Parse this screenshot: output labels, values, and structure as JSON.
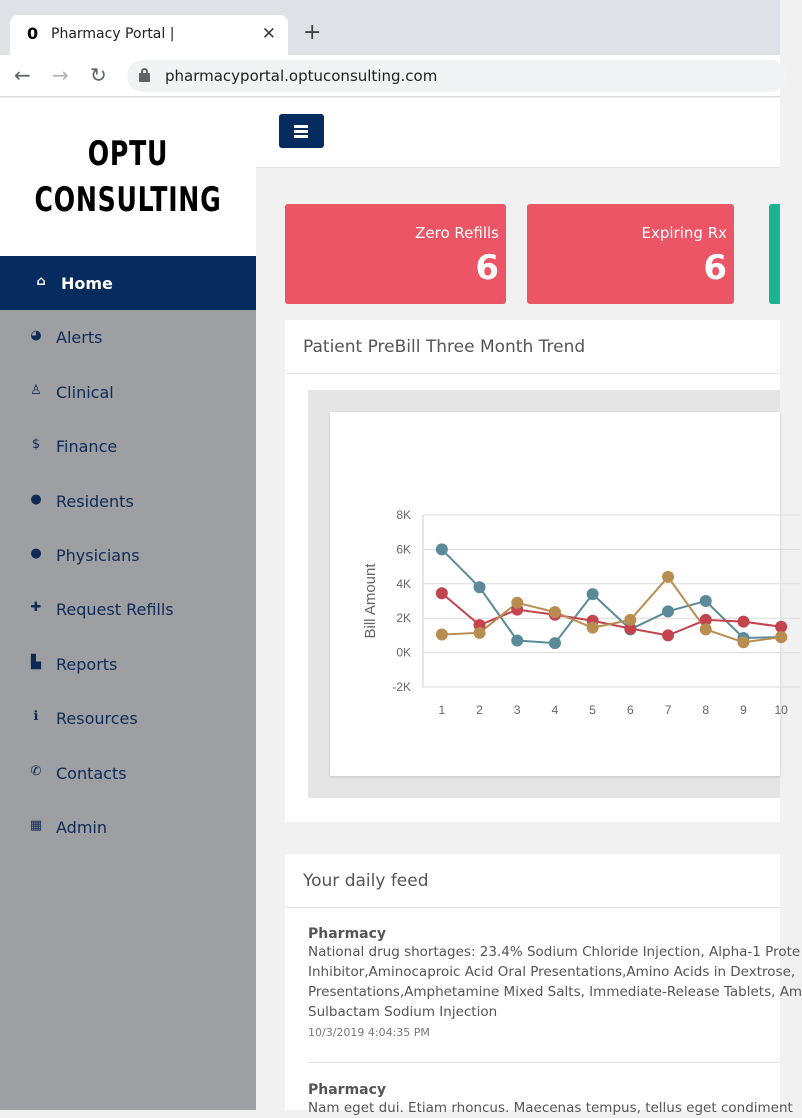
{
  "browser": {
    "tab_title": "Pharmacy Portal |",
    "tab_favicon": "0",
    "url": "pharmacyportal.optuconsulting.com"
  },
  "logo": {
    "line1": "OPTU",
    "line2": "CONSULTING"
  },
  "sidebar": {
    "items": [
      {
        "label": "Home",
        "icon": "home-icon",
        "glyph": "⌂"
      },
      {
        "label": "Alerts",
        "icon": "dashboard-icon",
        "glyph": "◕"
      },
      {
        "label": "Clinical",
        "icon": "user-md-icon",
        "glyph": "♙"
      },
      {
        "label": "Finance",
        "icon": "dollar-icon",
        "glyph": "$"
      },
      {
        "label": "Residents",
        "icon": "user-icon",
        "glyph": "●"
      },
      {
        "label": "Physicians",
        "icon": "user-icon",
        "glyph": "●"
      },
      {
        "label": "Request Refills",
        "icon": "medkit-icon",
        "glyph": "✚"
      },
      {
        "label": "Reports",
        "icon": "file-icon",
        "glyph": "▙"
      },
      {
        "label": "Resources",
        "icon": "info-circle-icon",
        "glyph": "ℹ"
      },
      {
        "label": "Contacts",
        "icon": "phone-icon",
        "glyph": "✆"
      },
      {
        "label": "Admin",
        "icon": "building-icon",
        "glyph": "▦"
      }
    ]
  },
  "cards": [
    {
      "label": "Zero Refills",
      "value": "6",
      "color": "#ec5565"
    },
    {
      "label": "Expiring Rx",
      "value": "6",
      "color": "#ec5565"
    },
    {
      "label": "",
      "value": "",
      "color": "#1bb394"
    }
  ],
  "chart_panel": {
    "title": "Patient PreBill Three Month Trend"
  },
  "chart_data": {
    "type": "line",
    "ylabel": "Bill Amount",
    "xlabel": "",
    "x": [
      1,
      2,
      3,
      4,
      5,
      6,
      7,
      8,
      9,
      10
    ],
    "ylim": [
      -2000,
      8000
    ],
    "yticks": [
      -2000,
      0,
      2000,
      4000,
      6000,
      8000
    ],
    "ytick_labels": [
      "-2K",
      "0K",
      "2K",
      "4K",
      "6K",
      "8K"
    ],
    "series": [
      {
        "color": "#5b8a99",
        "values": [
          6000,
          3800,
          700,
          550,
          3400,
          1350,
          2400,
          3000,
          850,
          900
        ]
      },
      {
        "color": "#c3434f",
        "values": [
          3450,
          1600,
          2500,
          2200,
          1850,
          1400,
          1000,
          1900,
          1800,
          1500
        ]
      },
      {
        "color": "#b88d4f",
        "values": [
          1050,
          1150,
          2900,
          2350,
          1450,
          1900,
          4400,
          1350,
          600,
          900
        ]
      }
    ],
    "grid": true
  },
  "feed_panel": {
    "title": "Your daily feed",
    "items": [
      {
        "source": "Pharmacy",
        "lines": [
          "National drug shortages: 23.4% Sodium Chloride Injection, Alpha-1 Prote",
          "Inhibitor,Aminocaproic Acid Oral Presentations,Amino Acids in Dextrose,",
          "Presentations,Amphetamine Mixed Salts, Immediate-Release Tablets, Am",
          "Sulbactam Sodium Injection"
        ],
        "time": "10/3/2019 4:04:35 PM"
      },
      {
        "source": "Pharmacy",
        "lines": [
          "Nam eget dui. Etiam rhoncus. Maecenas tempus, tellus eget condiment"
        ],
        "time": ""
      }
    ]
  }
}
